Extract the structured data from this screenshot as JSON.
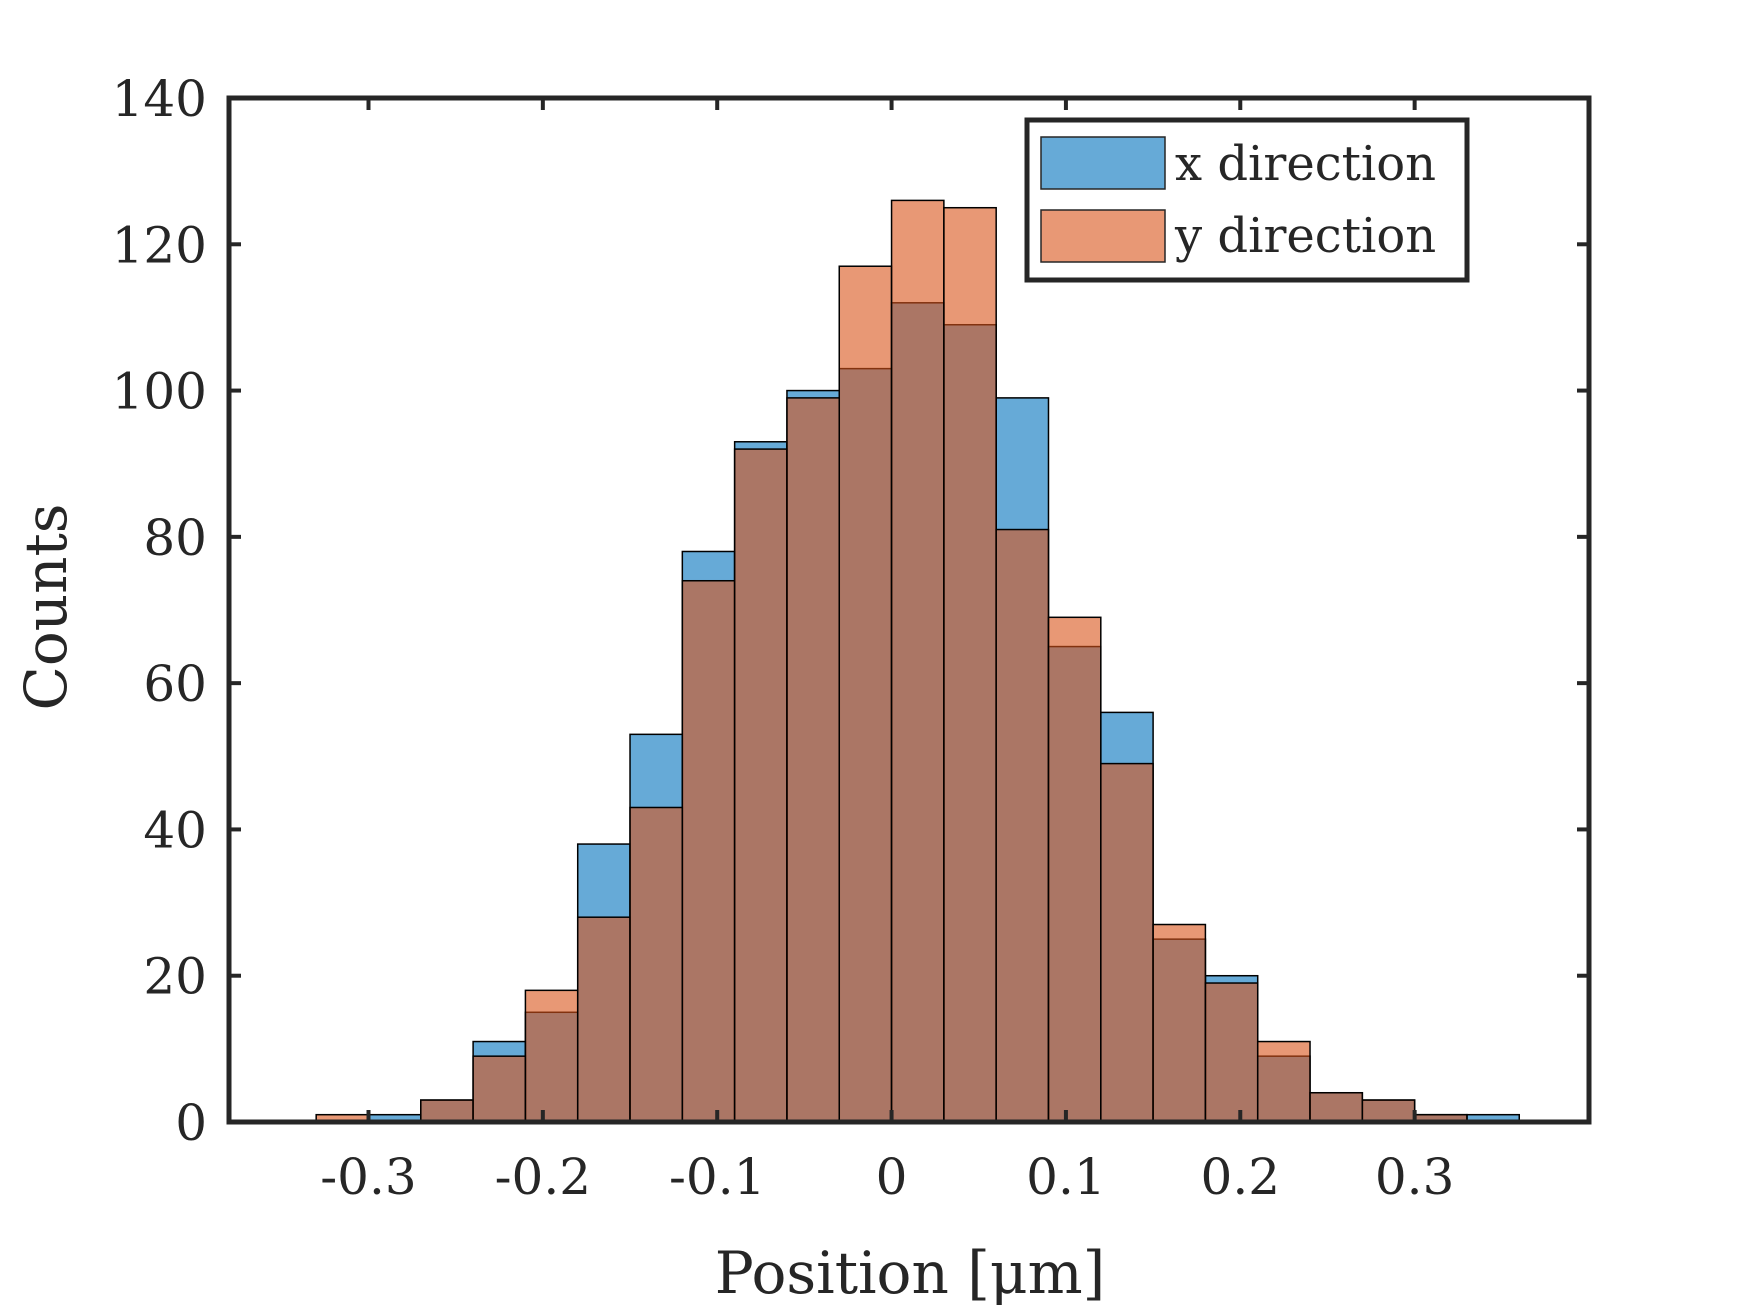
{
  "chart_data": {
    "type": "bar",
    "subtype": "overlapping-histogram",
    "xlabel": "Position [μm]",
    "ylabel": "Counts",
    "xlim": [
      -0.38,
      0.4
    ],
    "ylim": [
      0,
      140
    ],
    "xticks": [
      -0.3,
      -0.2,
      -0.1,
      0,
      0.1,
      0.2,
      0.3
    ],
    "xtick_labels": [
      "-0.3",
      "-0.2",
      "-0.1",
      "0",
      "0.1",
      "0.2",
      "0.3"
    ],
    "yticks": [
      0,
      20,
      40,
      60,
      80,
      100,
      120,
      140
    ],
    "ytick_labels": [
      "0",
      "20",
      "40",
      "60",
      "80",
      "100",
      "120",
      "140"
    ],
    "bin_edges": [
      -0.33,
      -0.3,
      -0.27,
      -0.24,
      -0.21,
      -0.18,
      -0.15,
      -0.12,
      -0.09,
      -0.06,
      -0.03,
      0.0,
      0.03,
      0.06,
      0.09,
      0.12,
      0.15,
      0.18,
      0.21,
      0.24,
      0.27,
      0.3,
      0.33,
      0.36
    ],
    "series": [
      {
        "name": "x direction",
        "color": "#0072bd",
        "values": [
          0,
          1,
          3,
          11,
          15,
          38,
          53,
          78,
          93,
          100,
          103,
          112,
          109,
          99,
          65,
          56,
          25,
          20,
          9,
          4,
          3,
          1,
          1
        ]
      },
      {
        "name": "y direction",
        "color": "#d95319",
        "values": [
          1,
          0,
          3,
          9,
          18,
          28,
          43,
          74,
          92,
          99,
          117,
          126,
          125,
          81,
          69,
          49,
          27,
          19,
          11,
          4,
          3,
          1,
          0
        ]
      }
    ],
    "overlap_color": "#a97764",
    "face_alpha": 0.6,
    "legend_position": "top-right",
    "grid": false,
    "box": true
  }
}
